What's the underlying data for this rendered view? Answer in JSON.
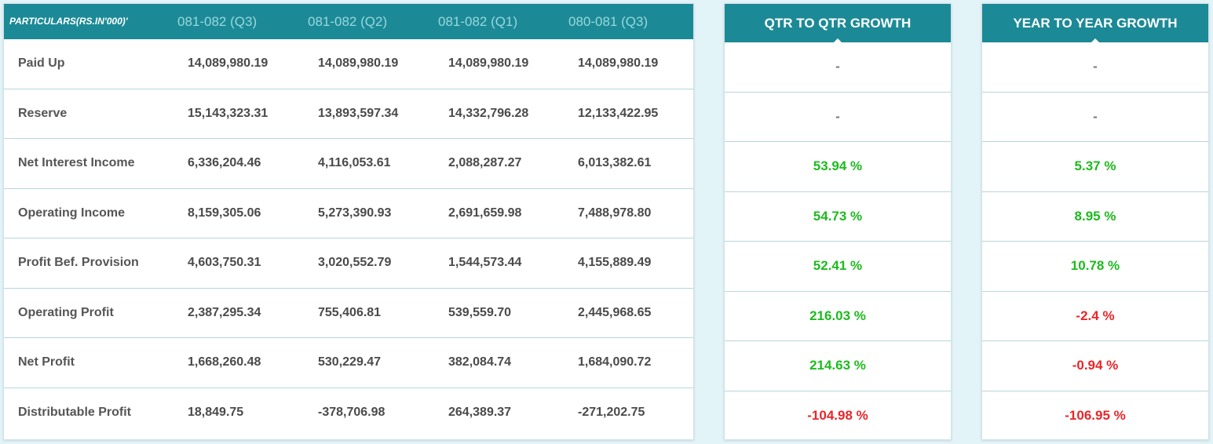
{
  "table": {
    "header_label": "PARTICULARS(RS.IN'000)'",
    "periods": [
      "081-082 (Q3)",
      "081-082 (Q2)",
      "081-082 (Q1)",
      "080-081 (Q3)"
    ],
    "rows": [
      {
        "label": "Paid Up",
        "values": [
          "14,089,980.19",
          "14,089,980.19",
          "14,089,980.19",
          "14,089,980.19"
        ]
      },
      {
        "label": "Reserve",
        "values": [
          "15,143,323.31",
          "13,893,597.34",
          "14,332,796.28",
          "12,133,422.95"
        ]
      },
      {
        "label": "Net Interest Income",
        "values": [
          "6,336,204.46",
          "4,116,053.61",
          "2,088,287.27",
          "6,013,382.61"
        ]
      },
      {
        "label": "Operating Income",
        "values": [
          "8,159,305.06",
          "5,273,390.93",
          "2,691,659.98",
          "7,488,978.80"
        ]
      },
      {
        "label": "Profit Bef. Provision",
        "values": [
          "4,603,750.31",
          "3,020,552.79",
          "1,544,573.44",
          "4,155,889.49"
        ]
      },
      {
        "label": "Operating Profit",
        "values": [
          "2,387,295.34",
          "755,406.81",
          "539,559.70",
          "2,445,968.65"
        ]
      },
      {
        "label": "Net Profit",
        "values": [
          "1,668,260.48",
          "530,229.47",
          "382,084.74",
          "1,684,090.72"
        ]
      },
      {
        "label": "Distributable Profit",
        "values": [
          "18,849.75",
          "-378,706.98",
          "264,389.37",
          "-271,202.75"
        ]
      }
    ]
  },
  "qtr_growth": {
    "title": "QTR TO QTR GROWTH",
    "values": [
      {
        "text": "-",
        "trend": "neutral"
      },
      {
        "text": "-",
        "trend": "neutral"
      },
      {
        "text": "53.94 %",
        "trend": "positive"
      },
      {
        "text": "54.73 %",
        "trend": "positive"
      },
      {
        "text": "52.41 %",
        "trend": "positive"
      },
      {
        "text": "216.03 %",
        "trend": "positive"
      },
      {
        "text": "214.63 %",
        "trend": "positive"
      },
      {
        "text": "-104.98 %",
        "trend": "negative"
      }
    ]
  },
  "yoy_growth": {
    "title": "YEAR TO YEAR GROWTH",
    "values": [
      {
        "text": "-",
        "trend": "neutral"
      },
      {
        "text": "-",
        "trend": "neutral"
      },
      {
        "text": "5.37 %",
        "trend": "positive"
      },
      {
        "text": "8.95 %",
        "trend": "positive"
      },
      {
        "text": "10.78 %",
        "trend": "positive"
      },
      {
        "text": "-2.4 %",
        "trend": "negative"
      },
      {
        "text": "-0.94 %",
        "trend": "negative"
      },
      {
        "text": "-106.95 %",
        "trend": "negative"
      }
    ]
  },
  "colors": {
    "header_bg": "#1b8a96",
    "positive": "#1dbb1d",
    "negative": "#e8262a",
    "neutral": "#777777"
  }
}
